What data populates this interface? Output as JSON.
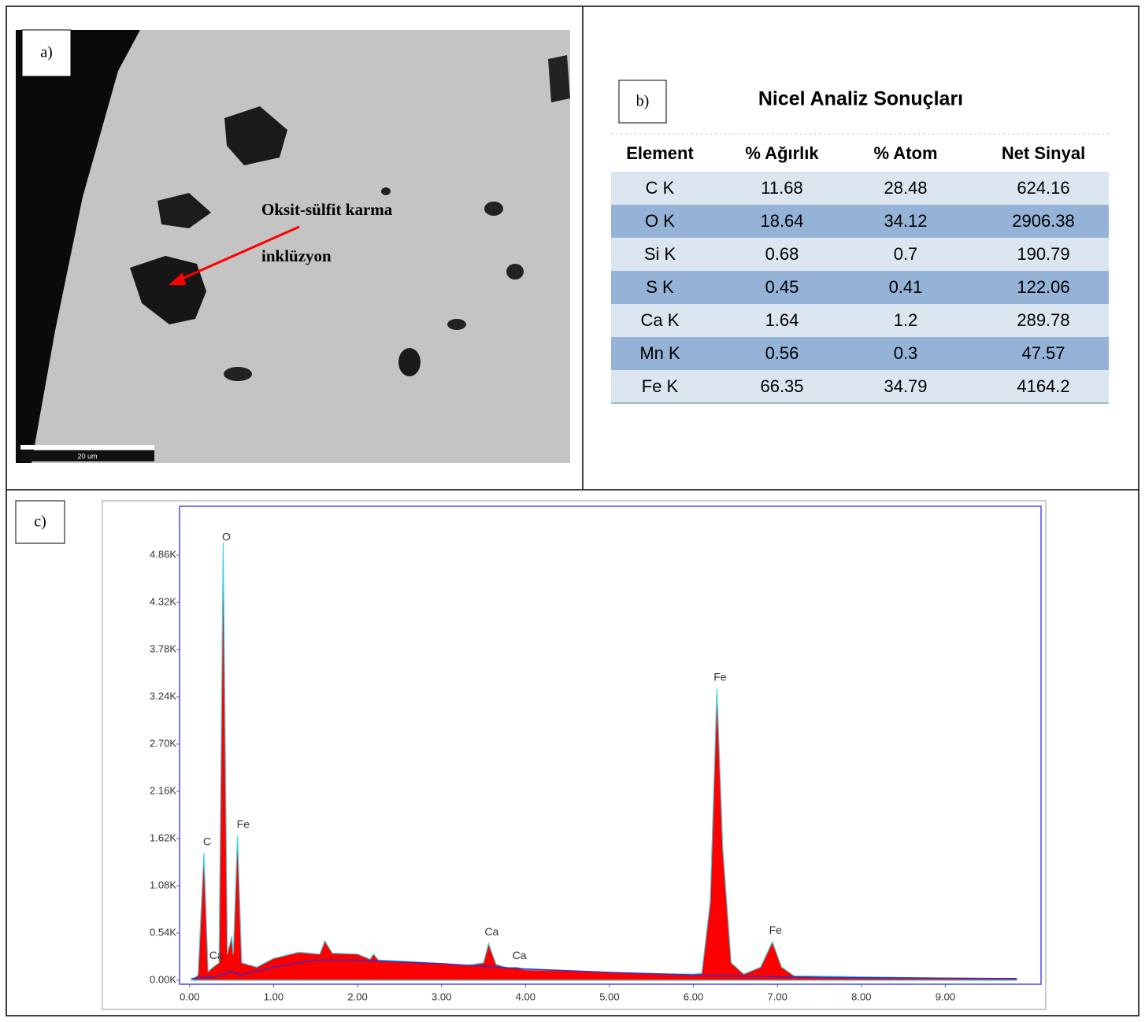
{
  "panel_a": {
    "label": "a)",
    "annotation_lines": [
      "Oksit-sülfit karma",
      "inklüzyon"
    ],
    "scale_bar": "20 um"
  },
  "panel_b": {
    "label": "b)",
    "title": "Nicel Analiz Sonuçları",
    "table": {
      "header": [
        "Element",
        "% Ağırlık",
        "% Atom",
        "Net Sinyal"
      ],
      "rows": [
        [
          "C K",
          11.68,
          28.48,
          624.16
        ],
        [
          "O K",
          18.64,
          34.12,
          2906.38
        ],
        [
          "Si K",
          0.68,
          0.7,
          190.79
        ],
        [
          "S K",
          0.45,
          0.41,
          122.06
        ],
        [
          "Ca K",
          1.64,
          1.2,
          289.78
        ],
        [
          "Mn K",
          0.56,
          0.3,
          47.57
        ],
        [
          "Fe K",
          66.35,
          34.79,
          4164.2
        ]
      ]
    }
  },
  "panel_c": {
    "label": "c)"
  },
  "chart_data": {
    "type": "area",
    "xlim": [
      -0.12,
      10.14
    ],
    "ylim": [
      -45,
      5418
    ],
    "xticks": [
      {
        "value": 0,
        "label": "0.00"
      },
      {
        "value": 1,
        "label": "1.00"
      },
      {
        "value": 2,
        "label": "2.00"
      },
      {
        "value": 3,
        "label": "3.00"
      },
      {
        "value": 4,
        "label": "4.00"
      },
      {
        "value": 5,
        "label": "5.00"
      },
      {
        "value": 6,
        "label": "6.00"
      },
      {
        "value": 7,
        "label": "7.00"
      },
      {
        "value": 8,
        "label": "8.00"
      },
      {
        "value": 9,
        "label": "9.00"
      }
    ],
    "yticks": [
      {
        "value": 0,
        "label": "0.00K"
      },
      {
        "value": 540,
        "label": "0.54K"
      },
      {
        "value": 1080,
        "label": "1.08K"
      },
      {
        "value": 1620,
        "label": "1.62K"
      },
      {
        "value": 2160,
        "label": "2.16K"
      },
      {
        "value": 2700,
        "label": "2.70K"
      },
      {
        "value": 3240,
        "label": "3.24K"
      },
      {
        "value": 3780,
        "label": "3.78K"
      },
      {
        "value": 4320,
        "label": "4.32K"
      },
      {
        "value": 4860,
        "label": "4.86K"
      }
    ],
    "series": [
      {
        "color": "#ff0000",
        "x": [
          0.02,
          0.1,
          0.17,
          0.22,
          0.28,
          0.35,
          0.4,
          0.45,
          0.5,
          0.52,
          0.57,
          0.62,
          0.8,
          1.0,
          1.3,
          1.55,
          1.61,
          1.7,
          2.0,
          2.15,
          2.19,
          2.25,
          2.5,
          3.0,
          3.3,
          3.5,
          3.56,
          3.65,
          3.8,
          3.89,
          4.0,
          4.5,
          5.0,
          5.5,
          6.0,
          6.1,
          6.2,
          6.28,
          6.35,
          6.45,
          6.6,
          6.8,
          6.94,
          7.05,
          7.2,
          8.0,
          9.0,
          9.85
        ],
        "values": [
          0,
          60,
          1450,
          100,
          150,
          200,
          5000,
          300,
          500,
          300,
          1650,
          200,
          150,
          250,
          320,
          300,
          450,
          310,
          300,
          240,
          300,
          230,
          220,
          190,
          170,
          200,
          420,
          180,
          140,
          150,
          120,
          110,
          90,
          75,
          70,
          80,
          900,
          3330,
          1500,
          200,
          70,
          150,
          440,
          150,
          50,
          40,
          25,
          20
        ]
      },
      {
        "color": "#2f2fc8",
        "x": [
          0.02,
          0.3,
          0.5,
          0.6,
          1.0,
          1.5,
          2.0,
          3.0,
          4.0,
          5.0,
          6.0,
          7.0,
          8.0,
          9.85
        ],
        "values": [
          20,
          40,
          100,
          60,
          150,
          230,
          230,
          190,
          130,
          90,
          60,
          40,
          30,
          20
        ]
      }
    ],
    "annotations": [
      {
        "text": "C",
        "x": 0.17,
        "y": 1450
      },
      {
        "text": "Ca",
        "x": 0.28,
        "y": 150
      },
      {
        "text": "O",
        "x": 0.4,
        "y": 5000
      },
      {
        "text": "Fe",
        "x": 0.6,
        "y": 1650
      },
      {
        "text": "Ca",
        "x": 3.56,
        "y": 420
      },
      {
        "text": "Ca",
        "x": 3.89,
        "y": 150
      },
      {
        "text": "Fe",
        "x": 6.28,
        "y": 3330
      },
      {
        "text": "Fe",
        "x": 6.94,
        "y": 440
      }
    ]
  }
}
